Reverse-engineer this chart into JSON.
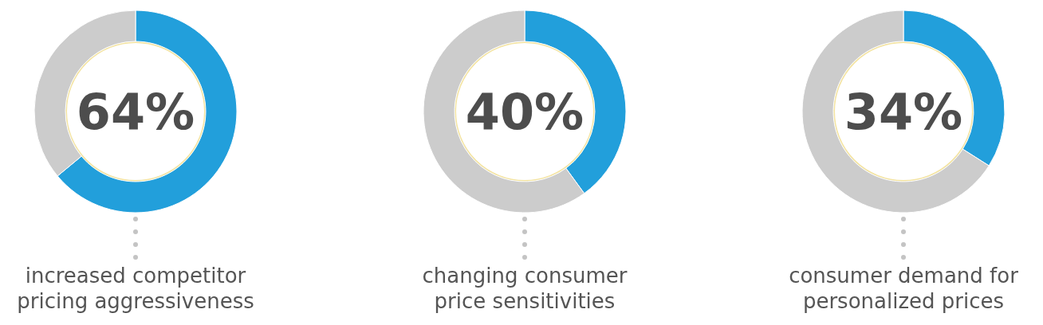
{
  "chart_data": [
    {
      "type": "donut",
      "title": "increased competitor pricing aggressiveness",
      "categories": [
        null,
        null
      ],
      "values": [
        64,
        36
      ],
      "colors": [
        "#229fdb",
        "#cccccc"
      ],
      "value_labels": [
        "64%",
        null
      ]
    },
    {
      "type": "donut",
      "title": "changing consumer price sensitivities",
      "categories": [
        null,
        null
      ],
      "values": [
        40,
        60
      ],
      "colors": [
        "#229fdb",
        "#cccccc"
      ],
      "value_labels": [
        "40%",
        null
      ]
    },
    {
      "type": "donut",
      "title": "consumer demand for personalized prices",
      "categories": [
        null,
        null
      ],
      "values": [
        34,
        66
      ],
      "colors": [
        "#229fdb",
        "#cccccc"
      ],
      "value_labels": [
        "34%",
        null
      ]
    }
  ]
}
